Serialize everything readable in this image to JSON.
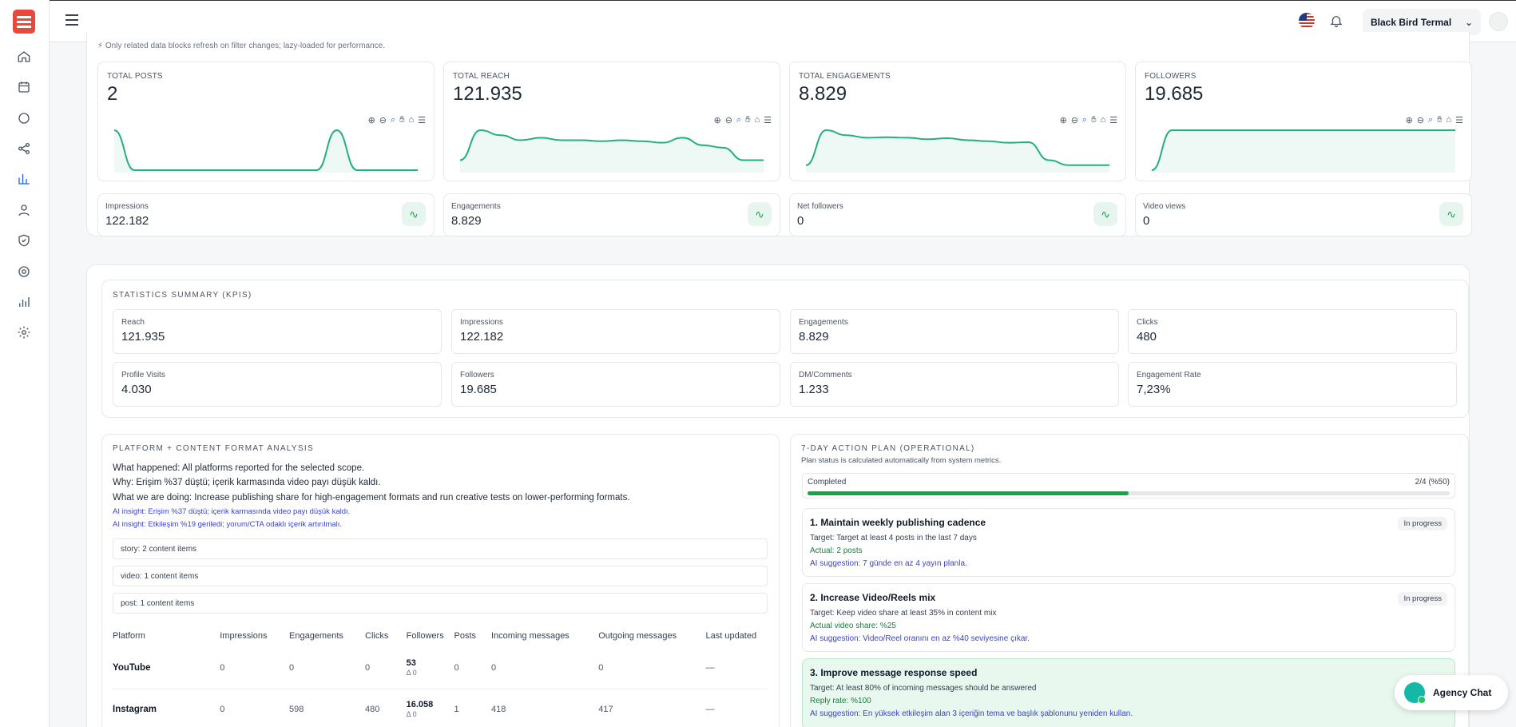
{
  "topbar": {
    "account_name": "Black Bird Termal",
    "chevron": "⌄"
  },
  "note": "Only related data blocks refresh on filter changes; lazy-loaded for performance.",
  "top_cards": [
    {
      "label": "TOTAL POSTS",
      "value": "2"
    },
    {
      "label": "TOTAL REACH",
      "value": "121.935"
    },
    {
      "label": "TOTAL ENGAGEMENTS",
      "value": "8.829"
    },
    {
      "label": "FOLLOWERS",
      "value": "19.685"
    }
  ],
  "mini_cards": [
    {
      "label": "Impressions",
      "value": "122.182"
    },
    {
      "label": "Engagements",
      "value": "8.829"
    },
    {
      "label": "Net followers",
      "value": "0"
    },
    {
      "label": "Video views",
      "value": "0"
    }
  ],
  "kpis": {
    "title": "STATISTICS SUMMARY (KPIS)",
    "items": [
      {
        "label": "Reach",
        "value": "121.935"
      },
      {
        "label": "Impressions",
        "value": "122.182"
      },
      {
        "label": "Engagements",
        "value": "8.829"
      },
      {
        "label": "Clicks",
        "value": "480"
      },
      {
        "label": "Profile Visits",
        "value": "4.030"
      },
      {
        "label": "Followers",
        "value": "19.685"
      },
      {
        "label": "DM/Comments",
        "value": "1.233"
      },
      {
        "label": "Engagement Rate",
        "value": "7,23%"
      }
    ]
  },
  "analysis": {
    "title": "PLATFORM + CONTENT FORMAT ANALYSIS",
    "what": "What happened: All platforms reported for the selected scope.",
    "why": "Why: Erişim %37 düştü; içerik karmasında video payı düşük kaldı.",
    "doing": "What we are doing: Increase publishing share for high-engagement formats and run creative tests on lower-performing formats.",
    "insight1": "AI insight: Erişim %37 düştü; içerik karmasında video payı düşük kaldı.",
    "insight2": "AI insight: Etkileşim %19 geriledi; yorum/CTA odaklı içerik artırılmalı.",
    "formats": [
      "story: 2 content items",
      "video: 1 content items",
      "post: 1 content items"
    ],
    "table": {
      "headers": [
        "Platform",
        "Impressions",
        "Engagements",
        "Clicks",
        "Followers",
        "Posts",
        "Incoming messages",
        "Outgoing messages",
        "Last updated"
      ],
      "rows": [
        {
          "platform": "YouTube",
          "impressions": "0",
          "engagements": "0",
          "clicks": "0",
          "followers": "53",
          "delta": "Δ 0",
          "posts": "0",
          "incoming": "0",
          "outgoing": "0",
          "updated": "—"
        },
        {
          "platform": "Instagram",
          "impressions": "0",
          "engagements": "598",
          "clicks": "480",
          "followers": "16.058",
          "delta": "Δ 0",
          "posts": "1",
          "incoming": "418",
          "outgoing": "417",
          "updated": "—"
        }
      ]
    }
  },
  "plan": {
    "title": "7-DAY ACTION PLAN (OPERATIONAL)",
    "subtitle": "Plan status is calculated automatically from system metrics.",
    "progress_label": "Completed",
    "progress_value": "2/4 (%50)",
    "progress_fraction": 0.5,
    "actions": [
      {
        "title": "1. Maintain weekly publishing cadence",
        "badge": "In progress",
        "target": "Target: Target at least 4 posts in the last 7 days",
        "actual": "Actual: 2 posts",
        "suggestion": "AI suggestion: 7 günde en az 4 yayın planla."
      },
      {
        "title": "2. Increase Video/Reels mix",
        "badge": "In progress",
        "target": "Target: Keep video share at least 35% in content mix",
        "actual": "Actual video share: %25",
        "suggestion": "AI suggestion: Video/Reel oranını en az %40 seviyesine çıkar."
      },
      {
        "title": "3. Improve message response speed",
        "badge": "",
        "target": "Target: At least 80% of incoming messages should be answered",
        "actual": "Reply rate: %100",
        "suggestion": "AI suggestion: En yüksek etkileşim alan 3 içeriğin tema ve başlık şablonunu yeniden kullan."
      }
    ]
  },
  "chat": {
    "label": "Agency Chat"
  },
  "colors": {
    "accent": "#16a34a",
    "line": "#22b07d",
    "brand": "#e8493b",
    "ai": "#3b43c9"
  },
  "chart_data": [
    {
      "type": "area",
      "title": "TOTAL POSTS",
      "values": [
        1,
        0,
        0,
        0,
        0,
        0,
        0,
        0,
        0,
        0,
        0,
        1,
        0,
        0,
        0,
        0
      ]
    },
    {
      "type": "area",
      "title": "TOTAL REACH",
      "values": [
        2,
        8,
        7,
        6,
        6.5,
        6,
        6,
        5.8,
        6,
        5.8,
        5.5,
        6.5,
        5,
        4.5,
        2,
        2
      ]
    },
    {
      "type": "area",
      "title": "TOTAL ENGAGEMENTS",
      "values": [
        1,
        8,
        7,
        6.5,
        6.6,
        6.5,
        6.2,
        6.4,
        6.0,
        5.8,
        5.5,
        5.6,
        2,
        1,
        1,
        1
      ]
    },
    {
      "type": "area",
      "title": "FOLLOWERS",
      "values": [
        0,
        10,
        10,
        10,
        10,
        10,
        10,
        10,
        10,
        10,
        10,
        10,
        10,
        10,
        10,
        10
      ]
    }
  ]
}
